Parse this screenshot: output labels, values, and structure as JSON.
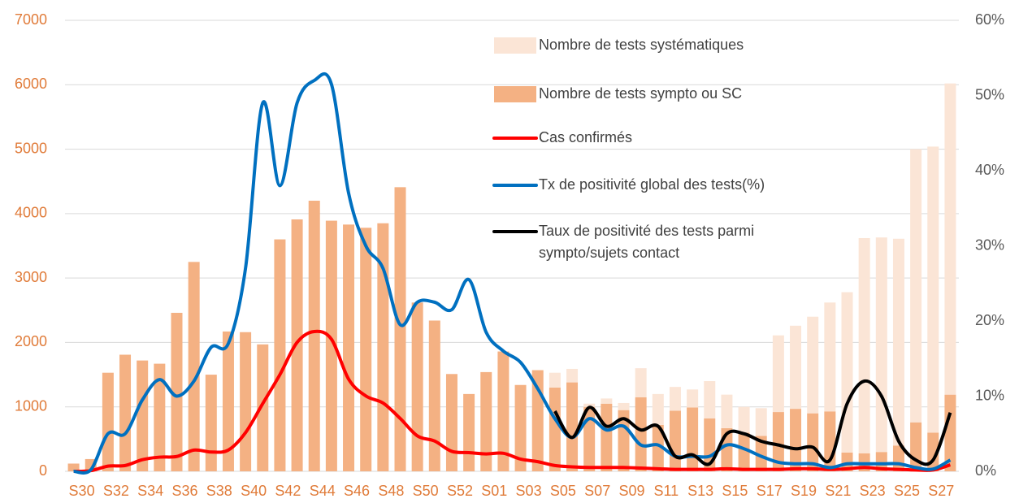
{
  "chart_data": {
    "type": "bar-line",
    "categories": [
      "S30",
      null,
      "S32",
      null,
      "S34",
      null,
      "S36",
      null,
      "S38",
      null,
      "S40",
      null,
      "S42",
      null,
      "S44",
      null,
      "S46",
      null,
      "S48",
      null,
      "S50",
      null,
      "S52",
      null,
      "S01",
      null,
      "S03",
      null,
      "S05",
      null,
      "S07",
      null,
      "S09",
      null,
      "S11",
      null,
      "S13",
      null,
      "S15",
      null,
      "S17",
      null,
      "S19",
      null,
      "S21",
      null,
      "S23",
      null,
      "S25",
      null,
      "S27",
      null
    ],
    "series": [
      {
        "name": "Nombre de tests systématiques",
        "kind": "bar",
        "color": "#fbe5d6",
        "values": [
          0,
          0,
          0,
          0,
          0,
          0,
          0,
          0,
          0,
          0,
          0,
          0,
          0,
          0,
          0,
          0,
          0,
          0,
          0,
          0,
          0,
          0,
          0,
          0,
          0,
          0,
          0,
          0,
          230,
          210,
          50,
          80,
          110,
          450,
          480,
          370,
          280,
          580,
          520,
          400,
          430,
          1190,
          1290,
          1500,
          1690,
          2490,
          3340,
          3330,
          3210,
          4240,
          4440,
          4830
        ]
      },
      {
        "name": "Nombre de tests sympto ou SC",
        "kind": "bar",
        "color": "#f4b183",
        "values": [
          120,
          190,
          1530,
          1810,
          1720,
          1670,
          2460,
          3250,
          1500,
          2170,
          2160,
          1970,
          3600,
          3910,
          4200,
          3890,
          3830,
          3780,
          3850,
          4410,
          2620,
          2340,
          1510,
          1200,
          1540,
          1860,
          1340,
          1570,
          1300,
          1380,
          1000,
          1050,
          950,
          1150,
          720,
          940,
          990,
          820,
          670,
          600,
          550,
          920,
          970,
          900,
          930,
          290,
          280,
          300,
          400,
          760,
          600,
          1190
        ]
      },
      {
        "name": "Cas confirmés",
        "kind": "line",
        "color": "#ff0000",
        "values": [
          0,
          10,
          80,
          90,
          180,
          220,
          230,
          330,
          300,
          330,
          600,
          1050,
          1500,
          2000,
          2170,
          2050,
          1430,
          1170,
          1060,
          820,
          550,
          470,
          310,
          290,
          270,
          280,
          190,
          150,
          90,
          70,
          60,
          60,
          60,
          50,
          40,
          30,
          30,
          30,
          40,
          30,
          30,
          30,
          40,
          40,
          30,
          40,
          60,
          40,
          30,
          20,
          20,
          100
        ]
      },
      {
        "name": "Tx de positivité global des tests(%)",
        "kind": "line",
        "axis": "y2",
        "color": "#0070c0",
        "values": [
          0,
          0.2,
          5,
          5,
          9.5,
          12.2,
          10,
          12,
          16.5,
          17,
          27,
          49,
          38,
          49,
          52,
          51.5,
          37,
          30,
          27,
          19.5,
          22.5,
          22.5,
          21.5,
          25.5,
          18.5,
          16,
          14.5,
          11,
          7,
          4.5,
          7,
          5.5,
          6,
          3.5,
          3.5,
          2,
          2,
          2,
          3.5,
          3,
          2,
          1.2,
          1,
          1,
          0.5,
          1,
          1,
          1,
          1,
          0.5,
          0.3,
          1.5
        ]
      },
      {
        "name": "Taux de positivité des tests parmi sympto/sujets contact",
        "kind": "line",
        "axis": "y2",
        "color": "#000000",
        "values": [
          null,
          null,
          null,
          null,
          null,
          null,
          null,
          null,
          null,
          null,
          null,
          null,
          null,
          null,
          null,
          null,
          null,
          null,
          null,
          null,
          null,
          null,
          null,
          null,
          null,
          null,
          null,
          null,
          8,
          4.5,
          8.5,
          6,
          7,
          5.5,
          6,
          2,
          2.2,
          1,
          5,
          5,
          4,
          3.5,
          3,
          3.2,
          1.5,
          9,
          12,
          10,
          4,
          1.5,
          1.5,
          7.8
        ]
      }
    ],
    "ylim": [
      0,
      7000
    ],
    "yticks": [
      0,
      1000,
      2000,
      3000,
      4000,
      5000,
      6000,
      7000
    ],
    "y2lim": [
      0,
      60
    ],
    "y2ticks": [
      {
        "value": 0,
        "label": "0%"
      },
      {
        "value": 10,
        "label": "10%"
      },
      {
        "value": 20,
        "label": "20%"
      },
      {
        "value": 30,
        "label": "30%"
      },
      {
        "value": 40,
        "label": "40%"
      },
      {
        "value": 50,
        "label": "50%"
      },
      {
        "value": 60,
        "label": "60%"
      }
    ],
    "grid": true,
    "legend": "top-right"
  }
}
